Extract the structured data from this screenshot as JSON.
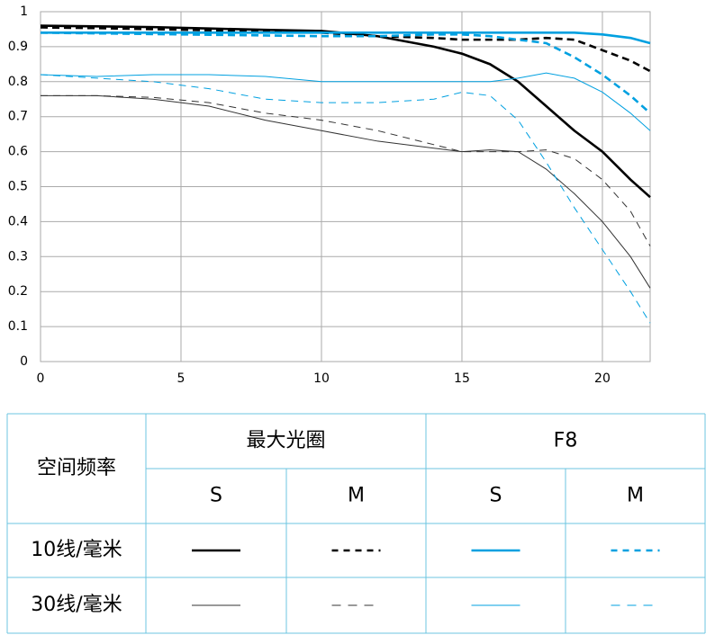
{
  "chart_data": {
    "type": "line",
    "x": [
      0,
      2,
      4,
      6,
      8,
      10,
      12,
      14,
      15,
      16,
      17,
      18,
      19,
      20,
      21,
      21.7
    ],
    "xlim": [
      0,
      21.7
    ],
    "xticks": [
      0,
      5,
      10,
      15,
      20
    ],
    "ylim": [
      0,
      1
    ],
    "yticks": [
      0,
      0.1,
      0.2,
      0.3,
      0.4,
      0.5,
      0.6,
      0.7,
      0.8,
      0.9,
      1
    ],
    "grid": true,
    "series": [
      {
        "color": "#000000",
        "line_width": 2.6,
        "dashed": false,
        "values": [
          0.96,
          0.958,
          0.956,
          0.952,
          0.948,
          0.945,
          0.93,
          0.9,
          0.88,
          0.85,
          0.8,
          0.73,
          0.66,
          0.6,
          0.52,
          0.47
        ]
      },
      {
        "color": "#000000",
        "line_width": 2.6,
        "dashed": true,
        "values": [
          0.955,
          0.953,
          0.95,
          0.947,
          0.943,
          0.94,
          0.93,
          0.925,
          0.92,
          0.92,
          0.92,
          0.925,
          0.92,
          0.89,
          0.86,
          0.83
        ]
      },
      {
        "color": "#00a0e0",
        "line_width": 2.6,
        "dashed": false,
        "values": [
          0.94,
          0.94,
          0.94,
          0.94,
          0.94,
          0.94,
          0.94,
          0.94,
          0.94,
          0.94,
          0.94,
          0.94,
          0.94,
          0.935,
          0.925,
          0.91
        ]
      },
      {
        "color": "#00a0e0",
        "line_width": 2.6,
        "dashed": true,
        "values": [
          0.94,
          0.938,
          0.936,
          0.934,
          0.932,
          0.93,
          0.93,
          0.935,
          0.935,
          0.93,
          0.92,
          0.91,
          0.87,
          0.82,
          0.76,
          0.71
        ]
      },
      {
        "color": "#333333",
        "line_width": 1,
        "dashed": false,
        "values": [
          0.76,
          0.76,
          0.75,
          0.73,
          0.69,
          0.66,
          0.63,
          0.61,
          0.6,
          0.605,
          0.6,
          0.55,
          0.48,
          0.4,
          0.3,
          0.21
        ]
      },
      {
        "color": "#333333",
        "line_width": 1,
        "dashed": true,
        "values": [
          0.76,
          0.76,
          0.755,
          0.74,
          0.71,
          0.69,
          0.66,
          0.62,
          0.6,
          0.6,
          0.6,
          0.605,
          0.58,
          0.52,
          0.43,
          0.33
        ]
      },
      {
        "color": "#00a0e0",
        "line_width": 1,
        "dashed": false,
        "values": [
          0.82,
          0.815,
          0.82,
          0.82,
          0.815,
          0.8,
          0.8,
          0.8,
          0.8,
          0.8,
          0.81,
          0.825,
          0.81,
          0.77,
          0.71,
          0.66
        ]
      },
      {
        "color": "#00a0e0",
        "line_width": 1,
        "dashed": true,
        "values": [
          0.82,
          0.81,
          0.8,
          0.78,
          0.75,
          0.74,
          0.74,
          0.75,
          0.77,
          0.76,
          0.69,
          0.57,
          0.44,
          0.32,
          0.2,
          0.11
        ]
      }
    ],
    "table": {
      "corner": "空间频率",
      "groups": [
        "最大光圈",
        "F8"
      ],
      "subheaders": [
        "S",
        "M",
        "S",
        "M"
      ],
      "rows": [
        "10线/毫米",
        "30线/毫米"
      ]
    }
  }
}
